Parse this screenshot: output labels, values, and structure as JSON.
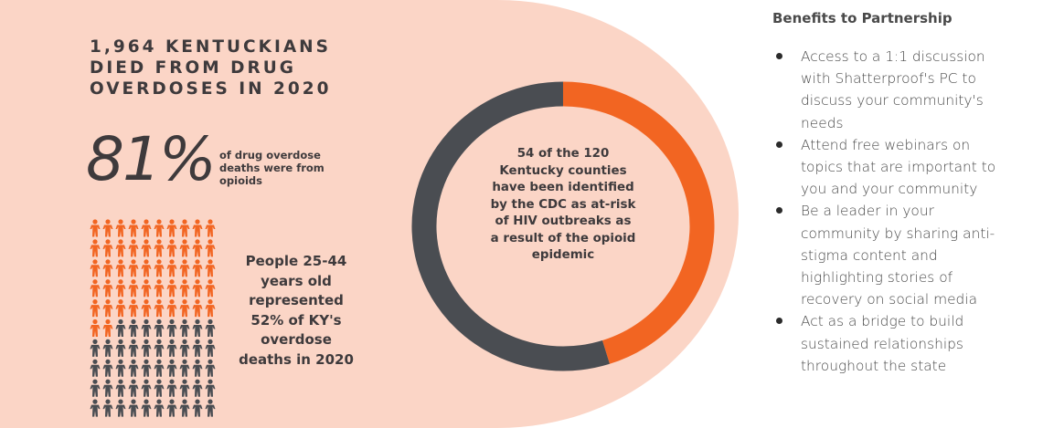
{
  "colors": {
    "panel_bg": "#fbd5c6",
    "accent_orange": "#f26522",
    "dark_gray": "#4a4d52",
    "text_dark": "#3e3a3c"
  },
  "infographic": {
    "headline_lines": [
      "1,964 KENTUCKIANS",
      "DIED FROM DRUG",
      "OVERDOSES IN 2020"
    ],
    "opioid_stat": {
      "value": "81%",
      "note_lines": [
        "of drug overdose",
        "deaths were from",
        "opioids"
      ]
    },
    "age_stat": {
      "note_lines": [
        "People 25-44",
        "years old",
        "represented",
        "52% of KY's",
        "overdose",
        "deaths in 2020"
      ],
      "pictogram": {
        "total": 100,
        "highlighted": 52,
        "per_row": 10,
        "icon": "person-icon"
      }
    },
    "county_stat": {
      "counties_at_risk": 54,
      "counties_total": 120,
      "text_lines": [
        "54 of the 120",
        "Kentucky counties",
        "have been identified",
        "by the CDC as at-risk",
        "of HIV outbreaks as",
        "a result of the opioid",
        "epidemic"
      ]
    }
  },
  "benefits": {
    "title": "Benefits to Partnership",
    "items": [
      [
        "Access to a 1:1 discussion",
        "with Shatterproof's PC to",
        "discuss your community's",
        "needs"
      ],
      [
        "Attend free webinars on",
        "topics that are important to",
        "you and your community"
      ],
      [
        "Be a leader in your",
        "community by sharing anti-",
        "stigma content and",
        "highlighting stories of",
        "recovery on social media"
      ],
      [
        "Act as a bridge to build",
        "sustained relationships",
        "throughout the state"
      ]
    ]
  }
}
